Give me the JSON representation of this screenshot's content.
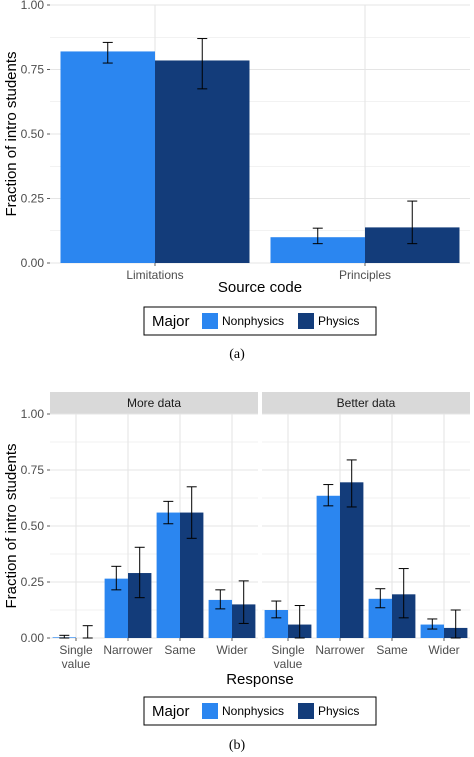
{
  "colors": {
    "Nonphysics": "#2b86f0",
    "Physics": "#133c7a",
    "panel_bg": "#ffffff",
    "grid": "#e5e5e5",
    "strip_bg": "#d9d9d9",
    "errorbar": "#000000"
  },
  "chart_data": [
    {
      "type": "bar",
      "panel_label": "(a)",
      "categories": [
        "Limitations",
        "Principles"
      ],
      "series": [
        {
          "name": "Nonphysics",
          "values": [
            0.82,
            0.1
          ],
          "err_low": [
            0.775,
            0.075
          ],
          "err_high": [
            0.855,
            0.135
          ]
        },
        {
          "name": "Physics",
          "values": [
            0.785,
            0.138
          ],
          "err_low": [
            0.675,
            0.075
          ],
          "err_high": [
            0.87,
            0.24
          ]
        }
      ],
      "xlabel": "Source code",
      "ylabel": "Fraction of intro students",
      "ylim": [
        0,
        1
      ],
      "yticks": [
        "0.00",
        "0.25",
        "0.50",
        "0.75",
        "1.00"
      ],
      "grid": true,
      "legend": {
        "title": "Major",
        "position": "bottom",
        "items": [
          "Nonphysics",
          "Physics"
        ]
      }
    },
    {
      "type": "bar",
      "panel_label": "(b)",
      "facets": [
        {
          "title": "More data",
          "categories": [
            "Single\nvalue",
            "Narrower",
            "Same",
            "Wider"
          ],
          "series": [
            {
              "name": "Nonphysics",
              "values": [
                0.003,
                0.265,
                0.56,
                0.17
              ],
              "err_low": [
                0.0,
                0.215,
                0.51,
                0.13
              ],
              "err_high": [
                0.012,
                0.32,
                0.61,
                0.215
              ]
            },
            {
              "name": "Physics",
              "values": [
                0.0,
                0.29,
                0.56,
                0.15
              ],
              "err_low": [
                0.0,
                0.18,
                0.445,
                0.065
              ],
              "err_high": [
                0.055,
                0.405,
                0.675,
                0.255
              ]
            }
          ]
        },
        {
          "title": "Better data",
          "categories": [
            "Single\nvalue",
            "Narrower",
            "Same",
            "Wider"
          ],
          "series": [
            {
              "name": "Nonphysics",
              "values": [
                0.125,
                0.635,
                0.175,
                0.06
              ],
              "err_low": [
                0.09,
                0.59,
                0.135,
                0.04
              ],
              "err_high": [
                0.165,
                0.685,
                0.22,
                0.085
              ]
            },
            {
              "name": "Physics",
              "values": [
                0.06,
                0.695,
                0.195,
                0.045
              ],
              "err_low": [
                0.0,
                0.585,
                0.09,
                0.0
              ],
              "err_high": [
                0.145,
                0.795,
                0.31,
                0.125
              ]
            }
          ]
        }
      ],
      "xlabel": "Response",
      "ylabel": "Fraction of intro students",
      "ylim": [
        0,
        1
      ],
      "yticks": [
        "0.00",
        "0.25",
        "0.50",
        "0.75",
        "1.00"
      ],
      "grid": true,
      "legend": {
        "title": "Major",
        "position": "bottom",
        "items": [
          "Nonphysics",
          "Physics"
        ]
      }
    }
  ]
}
